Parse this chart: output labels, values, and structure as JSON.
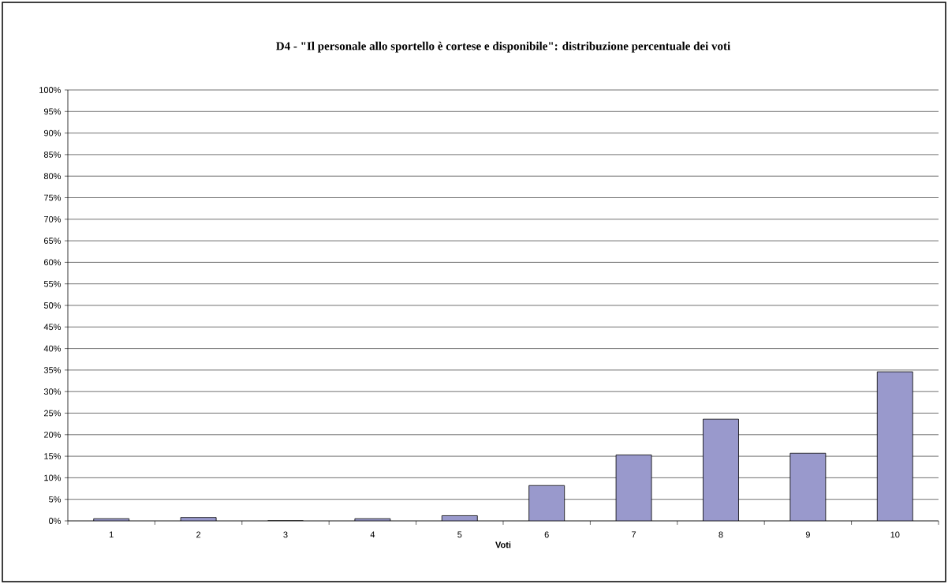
{
  "chart_data": {
    "type": "bar",
    "title": "D4 - \"Il personale allo sportello è cortese e disponibile\": distribuzione percentuale dei voti",
    "xlabel": "Voti",
    "categories": [
      "1",
      "2",
      "3",
      "4",
      "5",
      "6",
      "7",
      "8",
      "9",
      "10"
    ],
    "values": [
      0.5,
      0.8,
      0,
      0.5,
      1.2,
      8.2,
      15.3,
      23.6,
      15.7,
      34.6
    ],
    "color": "#9999cc",
    "ylim": [
      0,
      100
    ],
    "yticks": [
      {
        "value": 0,
        "label": "0%"
      },
      {
        "value": 5,
        "label": "5%"
      },
      {
        "value": 10,
        "label": "10%"
      },
      {
        "value": 15,
        "label": "15%"
      },
      {
        "value": 20,
        "label": "20%"
      },
      {
        "value": 25,
        "label": "25%"
      },
      {
        "value": 30,
        "label": "30%"
      },
      {
        "value": 35,
        "label": "35%"
      },
      {
        "value": 40,
        "label": "40%"
      },
      {
        "value": 45,
        "label": "45%"
      },
      {
        "value": 50,
        "label": "50%"
      },
      {
        "value": 55,
        "label": "55%"
      },
      {
        "value": 60,
        "label": "60%"
      },
      {
        "value": 65,
        "label": "65%"
      },
      {
        "value": 70,
        "label": "70%"
      },
      {
        "value": 75,
        "label": "75%"
      },
      {
        "value": 80,
        "label": "80%"
      },
      {
        "value": 85,
        "label": "85%"
      },
      {
        "value": 90,
        "label": "90%"
      },
      {
        "value": 95,
        "label": "95%"
      },
      {
        "value": 100,
        "label": "100%"
      }
    ],
    "grid": "y"
  }
}
